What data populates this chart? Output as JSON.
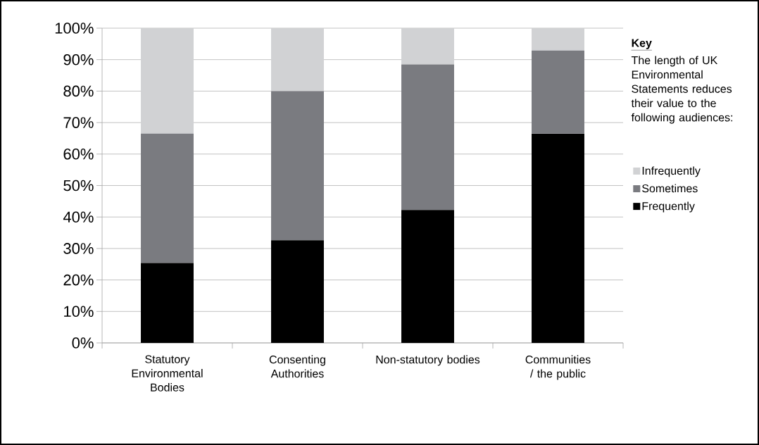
{
  "chart_data": {
    "type": "bar",
    "stacked": true,
    "categories": [
      "Statutory Environmental Bodies",
      "Consenting Authorities",
      "Non-statutory bodies",
      "Communities / the public"
    ],
    "series": [
      {
        "name": "Frequently",
        "color": "#000000",
        "values": [
          25.4,
          32.6,
          42.2,
          66.5
        ]
      },
      {
        "name": "Sometimes",
        "color": "#7a7b80",
        "values": [
          41.1,
          47.4,
          46.3,
          26.4
        ]
      },
      {
        "name": "Infrequently",
        "color": "#d1d2d4",
        "values": [
          33.5,
          20.0,
          11.5,
          7.1
        ]
      }
    ],
    "ylim": [
      0,
      100
    ],
    "yticks": [
      {
        "value": 0,
        "label": "0%"
      },
      {
        "value": 10,
        "label": "10%"
      },
      {
        "value": 20,
        "label": "20%"
      },
      {
        "value": 30,
        "label": "30%"
      },
      {
        "value": 40,
        "label": "40%"
      },
      {
        "value": 50,
        "label": "50%"
      },
      {
        "value": 60,
        "label": "60%"
      },
      {
        "value": 70,
        "label": "70%"
      },
      {
        "value": 80,
        "label": "80%"
      },
      {
        "value": 90,
        "label": "90%"
      },
      {
        "value": 100,
        "label": "100%"
      }
    ],
    "grid": "y",
    "legend": "right",
    "legend_title": "Key",
    "annotations": [
      "The length of UK Environmental Statements reduces their value to the following audiences:"
    ]
  }
}
